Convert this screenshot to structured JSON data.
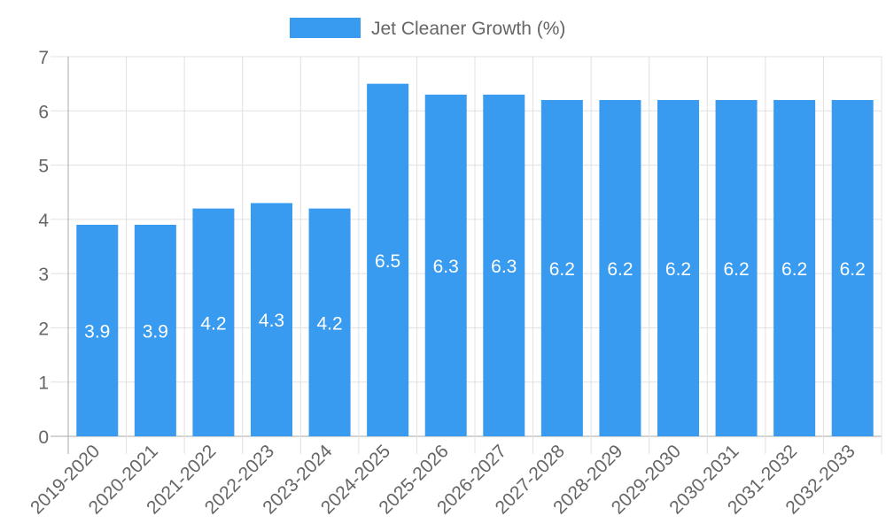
{
  "chart_data": {
    "type": "bar",
    "title": "",
    "legend": {
      "label": "Jet Cleaner Growth (%)",
      "placement": "top-center"
    },
    "categories": [
      "2019-2020",
      "2020-2021",
      "2021-2022",
      "2022-2023",
      "2023-2024",
      "2024-2025",
      "2025-2026",
      "2026-2027",
      "2027-2028",
      "2028-2029",
      "2029-2030",
      "2030-2031",
      "2031-2032",
      "2032-2033"
    ],
    "values": [
      3.9,
      3.9,
      4.2,
      4.3,
      4.2,
      6.5,
      6.3,
      6.3,
      6.2,
      6.2,
      6.2,
      6.2,
      6.2,
      6.2
    ],
    "value_labels": [
      "3.9",
      "3.9",
      "4.2",
      "4.3",
      "4.2",
      "6.5",
      "6.3",
      "6.3",
      "6.2",
      "6.2",
      "6.2",
      "6.2",
      "6.2",
      "6.2"
    ],
    "xlabel": "",
    "ylabel": "",
    "ylim": [
      0,
      7
    ],
    "yticks": [
      "0",
      "1",
      "2",
      "3",
      "4",
      "5",
      "6",
      "7"
    ],
    "grid": true,
    "colors": {
      "bar": "#389bf0",
      "grid": "#e0e0e0",
      "axis": "#aaaaaa",
      "text": "#666666",
      "label": "#ffffff"
    }
  }
}
